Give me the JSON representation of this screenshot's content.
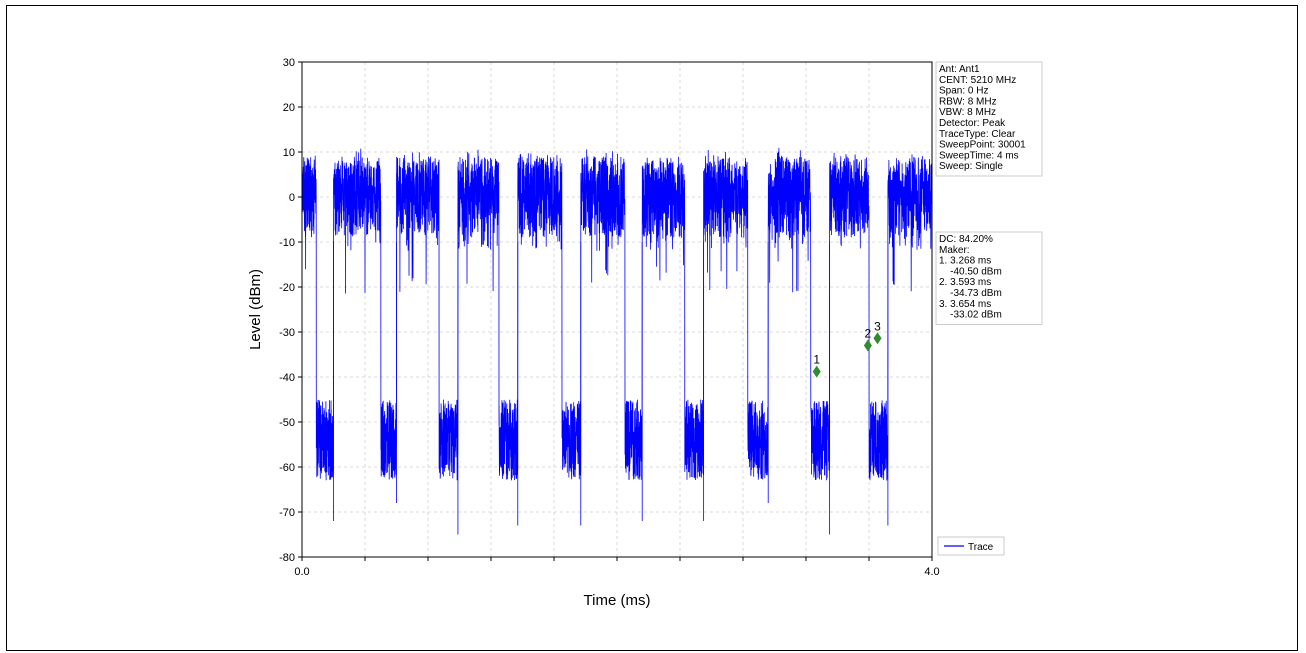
{
  "chart_data": {
    "type": "line",
    "xlabel": "Time (ms)",
    "ylabel": "Level (dBm)",
    "xlim": [
      0.0,
      4.0
    ],
    "ylim": [
      -80,
      30
    ],
    "x_tick_labels": [
      "0.0",
      "4.0"
    ],
    "y_ticks": [
      30,
      20,
      10,
      0,
      -10,
      -20,
      -30,
      -40,
      -50,
      -60,
      -70,
      -80
    ],
    "grid": true,
    "legend": {
      "placement": "bottom-right",
      "entries": [
        "Trace"
      ]
    },
    "series": [
      {
        "name": "Trace",
        "color": "#0000ff",
        "description_values": {
          "on_level_range_dBm": [
            -10,
            10
          ],
          "off_level_range_dBm": [
            -65,
            -45
          ],
          "on_intervals_ms": [
            [
              0.0,
              0.09
            ],
            [
              0.2,
              0.5
            ],
            [
              0.6,
              0.87
            ],
            [
              0.99,
              1.25
            ],
            [
              1.37,
              1.65
            ],
            [
              1.77,
              2.05
            ],
            [
              2.16,
              2.43
            ],
            [
              2.55,
              2.83
            ],
            [
              2.96,
              3.23
            ],
            [
              3.35,
              3.6
            ],
            [
              3.72,
              4.0
            ]
          ],
          "min_dips_dBm": [
            -72,
            -72,
            -68,
            -75,
            -73,
            -73
          ]
        }
      }
    ],
    "markers": [
      {
        "label": "1",
        "x": 3.268,
        "y": -38.8,
        "color": "#2e8b2e"
      },
      {
        "label": "2",
        "x": 3.593,
        "y": -33.0,
        "color": "#2e8b2e"
      },
      {
        "label": "3",
        "x": 3.654,
        "y": -31.4,
        "color": "#2e8b2e"
      }
    ],
    "info_box": [
      "Ant: Ant1",
      "CENT: 5210 MHz",
      "Span: 0 Hz",
      "RBW: 8 MHz",
      "VBW: 8 MHz",
      "Detector: Peak",
      "TraceType: Clear",
      "SweepPoint: 30001",
      "SweepTime: 4 ms",
      "Sweep: Single"
    ],
    "marker_box": [
      "DC: 84.20%",
      "Maker:",
      "1. 3.268 ms",
      "    -40.50 dBm",
      "2. 3.593 ms",
      "    -34.73 dBm",
      "3. 3.654 ms",
      "    -33.02 dBm"
    ]
  }
}
